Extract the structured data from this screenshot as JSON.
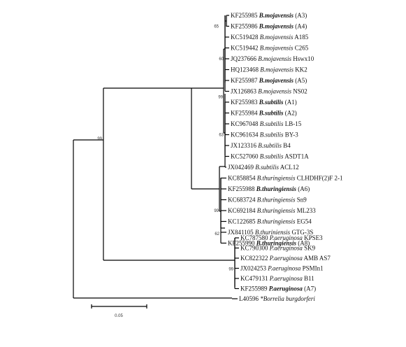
{
  "leaves": [
    {
      "acc": "KF255985",
      "species": "B.mojavensis",
      "strain": "(A3)",
      "highlight": true
    },
    {
      "acc": "KF255986",
      "species": "B.mojavensis",
      "strain": "(A4)",
      "highlight": true
    },
    {
      "acc": "KC519428",
      "species": "B.mojavensis",
      "strain": "A185",
      "highlight": false
    },
    {
      "acc": "KC519442",
      "species": "B.mojavensis",
      "strain": "C265",
      "highlight": false
    },
    {
      "acc": "JQ237666",
      "species": "B.mojavensis",
      "strain": "Hswx10",
      "highlight": false
    },
    {
      "acc": "HQ123468",
      "species": "B.mojavensis",
      "strain": "KK2",
      "highlight": false
    },
    {
      "acc": "KF255987",
      "species": "B.mojavensis",
      "strain": "(A5)",
      "highlight": true
    },
    {
      "acc": "JX126863",
      "species": "B.mojavensis",
      "strain": "NS02",
      "highlight": false
    },
    {
      "acc": "KF255983",
      "species": "B.subtilis",
      "strain": "(A1)",
      "highlight": true
    },
    {
      "acc": "KF255984",
      "species": "B.subtilis",
      "strain": "(A2)",
      "highlight": true
    },
    {
      "acc": "KC967048",
      "species": "B.subtilis",
      "strain": "LB-15",
      "highlight": false
    },
    {
      "acc": "KC961634",
      "species": "B.subtilis",
      "strain": "BY-3",
      "highlight": false
    },
    {
      "acc": "JX123316",
      "species": "B.subtilis",
      "strain": "B4",
      "highlight": false
    },
    {
      "acc": "KC527060",
      "species": "B.subtilis",
      "strain": "ASDT1A",
      "highlight": false
    },
    {
      "acc": "JX042469",
      "species": "B.subtilis",
      "strain": "ACL12",
      "highlight": false
    },
    {
      "acc": "KC858854",
      "species": "B.thuringiensis",
      "strain": "CLHDHF(2)F 2-1",
      "highlight": false
    },
    {
      "acc": "KF255988",
      "species": "B.thuringiensis",
      "strain": "(A6)",
      "highlight": true
    },
    {
      "acc": "KC683724",
      "species": "B.thuringiensis",
      "strain": "Sn9",
      "highlight": false
    },
    {
      "acc": "KC692184",
      "species": "B.thuringiensis",
      "strain": "ML233",
      "highlight": false
    },
    {
      "acc": "KC122685",
      "species": "B.thuringiensis",
      "strain": "EG54",
      "highlight": false
    },
    {
      "acc": "JX841105",
      "species": "B.thuriniensis",
      "strain": "GTG-3S",
      "highlight": false
    },
    {
      "acc": "KF255990",
      "species": "B.thuringiensis",
      "strain": "(A8)",
      "highlight": true
    },
    {
      "acc": "KC787580",
      "species": "P.aeruginosa",
      "strain": "KPSE3",
      "highlight": false
    },
    {
      "acc": "KC790300",
      "species": "P.aeruginosa",
      "strain": "SK9",
      "highlight": false
    },
    {
      "acc": "KC822322",
      "species": "P.aeruginosa",
      "strain": "AMB AS7",
      "highlight": false
    },
    {
      "acc": "JX024253",
      "species": "P.aeruginosa",
      "strain": "PSMIn1",
      "highlight": false
    },
    {
      "acc": "KC479131",
      "species": "P.aeruginosa",
      "strain": "B11",
      "highlight": false
    },
    {
      "acc": "KF255989",
      "species": "P.aeruginosa",
      "strain": "(A7)",
      "highlight": true
    },
    {
      "acc": "L40596",
      "species": "*Borrelia burgdorferi",
      "strain": "",
      "highlight": false
    }
  ],
  "bootstrap_values": [
    "65",
    "60",
    "99",
    "63",
    "99",
    "99",
    "62",
    "99"
  ],
  "scale_bar": {
    "label": "0.05"
  }
}
